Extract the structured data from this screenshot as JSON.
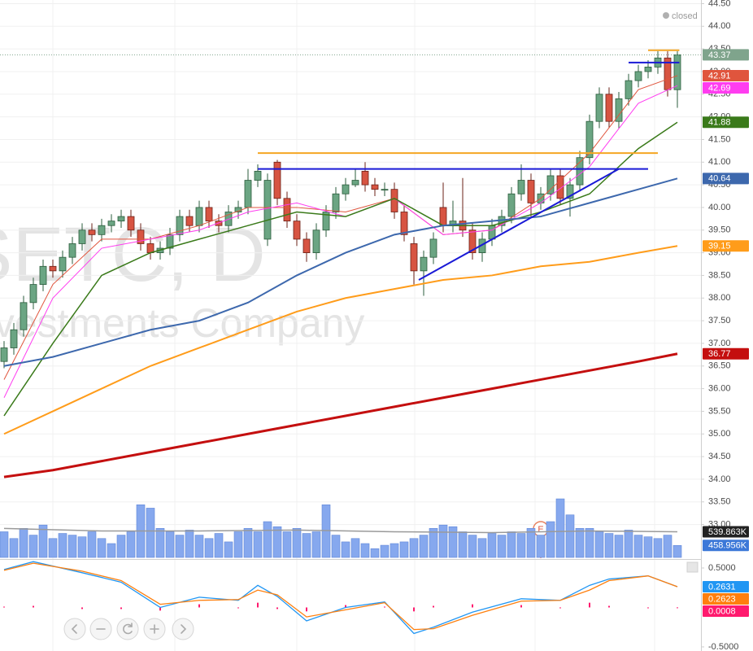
{
  "status": "closed",
  "watermark": {
    "symbol": "SETC, D",
    "description": "Investments Company"
  },
  "chart_data": [
    {
      "type": "candlestick",
      "ylim": [
        32.22,
        44.58
      ],
      "yticks": [
        {
          "value": 33.0,
          "label": "33.00"
        },
        {
          "value": 33.5,
          "label": "33.50"
        },
        {
          "value": 34.0,
          "label": "34.00"
        },
        {
          "value": 34.5,
          "label": "34.50"
        },
        {
          "value": 35.0,
          "label": "35.00"
        },
        {
          "value": 35.5,
          "label": "35.50"
        },
        {
          "value": 36.0,
          "label": "36.00"
        },
        {
          "value": 36.5,
          "label": "36.50"
        },
        {
          "value": 37.0,
          "label": "37.00"
        },
        {
          "value": 37.5,
          "label": "37.50"
        },
        {
          "value": 38.0,
          "label": "38.00"
        },
        {
          "value": 38.5,
          "label": "38.50"
        },
        {
          "value": 39.0,
          "label": "39.00"
        },
        {
          "value": 39.5,
          "label": "39.50"
        },
        {
          "value": 40.0,
          "label": "40.00"
        },
        {
          "value": 40.5,
          "label": "40.50"
        },
        {
          "value": 41.0,
          "label": "41.00"
        },
        {
          "value": 41.5,
          "label": "41.50"
        },
        {
          "value": 42.0,
          "label": "42.00"
        },
        {
          "value": 42.5,
          "label": "42.50"
        },
        {
          "value": 43.0,
          "label": "43.00"
        },
        {
          "value": 43.5,
          "label": "43.50"
        },
        {
          "value": 44.0,
          "label": "44.00"
        },
        {
          "value": 44.5,
          "label": "44.50"
        }
      ],
      "grid": true,
      "up_color": "#6ba583",
      "down_color": "#d75442",
      "last_color": "#7fa48c",
      "open": [
        36.6,
        36.9,
        37.3,
        37.9,
        38.3,
        38.7,
        38.6,
        38.9,
        39.2,
        39.5,
        39.4,
        39.6,
        39.7,
        39.8,
        39.5,
        39.2,
        39.0,
        39.1,
        39.4,
        39.8,
        39.6,
        40.0,
        39.7,
        39.6,
        39.9,
        40.0,
        40.6,
        39.3,
        41.0,
        40.2,
        39.7,
        39.3,
        39.0,
        39.5,
        39.9,
        40.3,
        40.5,
        40.8,
        40.5,
        40.4,
        40.4,
        39.9,
        39.2,
        38.6,
        38.9,
        40.0,
        39.6,
        39.7,
        39.5,
        39.0,
        39.3,
        39.6,
        39.8,
        40.3,
        40.6,
        40.1,
        40.3,
        40.7,
        40.2,
        40.5,
        41.1,
        41.9,
        42.5,
        41.9,
        42.4,
        42.8,
        43.0,
        43.1,
        43.3,
        42.6
      ],
      "high": [
        37.05,
        37.45,
        38.05,
        38.45,
        38.85,
        38.85,
        39.05,
        39.35,
        39.65,
        39.65,
        39.75,
        39.85,
        39.95,
        39.95,
        39.65,
        39.35,
        39.25,
        39.55,
        39.95,
        39.95,
        40.15,
        40.15,
        39.85,
        40.05,
        40.15,
        40.85,
        40.95,
        40.75,
        41.05,
        40.35,
        39.85,
        39.45,
        39.65,
        40.05,
        40.45,
        40.65,
        40.85,
        41.0,
        40.65,
        40.55,
        40.55,
        40.05,
        39.35,
        39.05,
        39.45,
        40.55,
        40.15,
        40.65,
        39.65,
        39.45,
        39.75,
        39.95,
        40.45,
        40.95,
        40.75,
        40.45,
        40.85,
        40.85,
        40.65,
        41.25,
        42.05,
        42.65,
        42.65,
        42.55,
        42.95,
        43.15,
        43.25,
        43.45,
        43.45,
        43.45
      ],
      "low": [
        36.45,
        36.75,
        37.15,
        37.75,
        38.15,
        38.45,
        38.45,
        38.75,
        39.05,
        39.25,
        39.25,
        39.45,
        39.55,
        39.35,
        39.05,
        38.85,
        38.85,
        38.95,
        39.25,
        39.45,
        39.45,
        39.55,
        39.45,
        39.45,
        39.75,
        39.85,
        40.45,
        39.15,
        40.05,
        39.55,
        39.15,
        38.8,
        38.85,
        39.35,
        39.75,
        40.15,
        40.45,
        40.35,
        40.25,
        40.25,
        39.75,
        39.25,
        38.3,
        38.05,
        38.75,
        39.45,
        39.45,
        39.35,
        38.85,
        38.8,
        39.15,
        39.45,
        39.65,
        40.15,
        39.8,
        39.95,
        40.15,
        40.05,
        39.8,
        40.35,
        40.95,
        41.75,
        41.75,
        41.75,
        42.25,
        42.65,
        42.85,
        42.95,
        42.45,
        42.2
      ],
      "close": [
        36.9,
        37.3,
        37.9,
        38.3,
        38.7,
        38.6,
        38.9,
        39.2,
        39.5,
        39.4,
        39.6,
        39.7,
        39.8,
        39.5,
        39.2,
        39.0,
        39.1,
        39.4,
        39.8,
        39.6,
        40.0,
        39.7,
        39.6,
        39.9,
        40.0,
        40.6,
        40.8,
        40.6,
        40.2,
        39.7,
        39.3,
        39.0,
        39.5,
        39.9,
        40.3,
        40.5,
        40.6,
        40.5,
        40.4,
        40.4,
        39.9,
        39.4,
        38.6,
        38.9,
        39.3,
        39.6,
        39.7,
        39.5,
        39.0,
        39.3,
        39.6,
        39.8,
        40.3,
        40.6,
        40.1,
        40.3,
        40.7,
        40.2,
        40.5,
        41.1,
        41.9,
        42.5,
        41.9,
        42.4,
        42.8,
        43.0,
        43.1,
        43.3,
        42.6,
        43.37
      ],
      "series": [
        {
          "color": "#e0553d",
          "width": 1,
          "x": [
            0,
            5,
            10,
            15,
            20,
            25,
            30,
            35,
            40,
            45,
            50,
            55,
            60,
            65,
            69
          ],
          "values": [
            36.2,
            38.3,
            39.3,
            39.3,
            39.6,
            40.0,
            40.0,
            39.9,
            40.2,
            39.4,
            39.5,
            40.2,
            41.2,
            42.6,
            42.91
          ]
        },
        {
          "color": "#ff3df0",
          "width": 1,
          "x": [
            0,
            5,
            10,
            15,
            20,
            25,
            30,
            35,
            40,
            45,
            50,
            55,
            60,
            65,
            69
          ],
          "values": [
            35.8,
            38.0,
            39.1,
            39.3,
            39.5,
            39.9,
            40.1,
            39.8,
            40.2,
            39.4,
            39.5,
            40.1,
            40.9,
            42.3,
            42.69
          ]
        },
        {
          "color": "#3a7a1a",
          "width": 1.5,
          "x": [
            0,
            5,
            10,
            15,
            20,
            25,
            30,
            35,
            40,
            45,
            50,
            55,
            60,
            65,
            69
          ],
          "values": [
            35.4,
            37.0,
            38.5,
            39.0,
            39.3,
            39.6,
            39.9,
            39.8,
            40.2,
            39.6,
            39.6,
            39.9,
            40.3,
            41.3,
            41.88
          ]
        },
        {
          "color": "#3d68ad",
          "width": 2,
          "x": [
            0,
            5,
            10,
            15,
            20,
            25,
            30,
            35,
            40,
            45,
            50,
            55,
            60,
            65,
            69
          ],
          "values": [
            36.5,
            36.7,
            37.0,
            37.3,
            37.5,
            37.9,
            38.5,
            39.0,
            39.4,
            39.6,
            39.7,
            39.8,
            40.1,
            40.4,
            40.64
          ]
        },
        {
          "color": "#ff9c1a",
          "width": 2,
          "x": [
            0,
            5,
            10,
            15,
            20,
            25,
            30,
            35,
            40,
            45,
            50,
            55,
            60,
            65,
            69
          ],
          "values": [
            35.0,
            35.5,
            36.0,
            36.5,
            36.9,
            37.3,
            37.7,
            38.0,
            38.2,
            38.4,
            38.5,
            38.7,
            38.8,
            39.0,
            39.15
          ]
        },
        {
          "color": "#c40f0f",
          "width": 3,
          "x": [
            0,
            5,
            10,
            15,
            20,
            25,
            30,
            35,
            40,
            45,
            50,
            55,
            60,
            65,
            69
          ],
          "values": [
            34.05,
            34.2,
            34.4,
            34.6,
            34.8,
            35.0,
            35.2,
            35.4,
            35.6,
            35.8,
            36.0,
            36.2,
            36.4,
            36.6,
            36.77
          ]
        }
      ],
      "drawings": [
        {
          "color": "#f5a623",
          "x": [
            26,
            67
          ],
          "y": [
            41.2,
            41.2
          ]
        },
        {
          "color": "#1a1ad6",
          "x": [
            26,
            66
          ],
          "y": [
            40.85,
            40.85
          ]
        },
        {
          "color": "#1a1ad6",
          "x": [
            42.5,
            63
          ],
          "y": [
            38.4,
            40.85
          ]
        },
        {
          "color": "#1a1ad6",
          "x": [
            64,
            69.2
          ],
          "y": [
            43.2,
            43.2
          ]
        },
        {
          "color": "#f5a623",
          "x": [
            66,
            69.2
          ],
          "y": [
            43.47,
            43.47
          ]
        }
      ],
      "events": [
        {
          "x": 55,
          "label": "E"
        }
      ]
    },
    {
      "type": "bar",
      "color": "#86a8ee",
      "label_color": "#3c78d8",
      "ylim": [
        388,
        740
      ],
      "values": [
        540,
        500,
        560,
        520,
        580,
        500,
        530,
        520,
        510,
        540,
        500,
        470,
        520,
        540,
        700,
        680,
        560,
        540,
        520,
        550,
        520,
        500,
        530,
        480,
        540,
        560,
        540,
        600,
        570,
        540,
        560,
        530,
        540,
        700,
        520,
        480,
        500,
        470,
        440,
        460,
        470,
        480,
        500,
        520,
        560,
        580,
        570,
        540,
        520,
        500,
        530,
        520,
        540,
        530,
        560,
        520,
        600,
        735,
        640,
        560,
        560,
        540,
        530,
        520,
        550,
        520,
        510,
        500,
        520,
        458.956
      ],
      "value_labels": [
        null,
        null,
        null,
        null,
        null,
        null,
        null,
        null,
        null,
        null,
        null,
        null,
        null,
        null,
        null,
        null,
        null,
        null,
        null,
        null,
        null,
        null,
        null,
        null,
        null,
        null,
        null,
        null,
        null,
        null,
        null,
        null,
        null,
        null,
        null,
        null,
        null,
        null,
        null,
        null,
        null,
        null,
        null,
        null,
        null,
        null,
        null,
        null,
        null,
        null,
        null,
        null,
        null,
        null,
        null,
        null,
        null,
        null,
        null,
        null,
        null,
        null,
        null,
        null,
        null,
        null,
        null,
        null,
        null,
        "458.956K"
      ],
      "series": [
        {
          "color": "#9a9a9a",
          "label_color": "#222222",
          "x": [
            0,
            10,
            20,
            30,
            40,
            50,
            60,
            69
          ],
          "values": [
            560,
            545,
            545,
            550,
            540,
            535,
            545,
            539.863
          ],
          "value_labels": [
            null,
            null,
            null,
            null,
            null,
            null,
            null,
            "539.863K"
          ]
        }
      ]
    },
    {
      "type": "line",
      "ylim": [
        -0.552,
        0.603
      ],
      "yticks": [
        {
          "value": 0.5,
          "label": "0.5000"
        },
        {
          "value": -0.5,
          "label": "-0.5000"
        }
      ],
      "x": [
        0,
        3,
        8,
        12,
        16,
        20,
        24,
        26,
        28,
        31,
        35,
        39,
        42,
        44,
        48,
        53,
        57,
        60,
        62,
        66,
        69
      ],
      "series": [
        {
          "color": "#2196f3",
          "values": [
            0.48,
            0.58,
            0.44,
            0.32,
            0.0,
            0.13,
            0.09,
            0.28,
            0.14,
            -0.17,
            0.0,
            0.07,
            -0.33,
            -0.25,
            -0.06,
            0.11,
            0.09,
            0.28,
            0.36,
            0.4,
            0.2631
          ]
        },
        {
          "color": "#ff7f0e",
          "values": [
            0.47,
            0.56,
            0.46,
            0.34,
            0.04,
            0.09,
            0.1,
            0.22,
            0.16,
            -0.12,
            -0.03,
            0.06,
            -0.28,
            -0.27,
            -0.1,
            0.08,
            0.09,
            0.22,
            0.34,
            0.4,
            0.2623
          ]
        }
      ],
      "histogram": {
        "color": "#ff1a6e",
        "values": [
          0.01,
          0.02,
          -0.02,
          -0.02,
          -0.04,
          0.04,
          -0.01,
          0.06,
          -0.02,
          -0.05,
          0.03,
          0.01,
          -0.05,
          0.02,
          0.04,
          0.03,
          0.0,
          0.06,
          0.02,
          0.0,
          0.0008
        ]
      }
    }
  ]
}
